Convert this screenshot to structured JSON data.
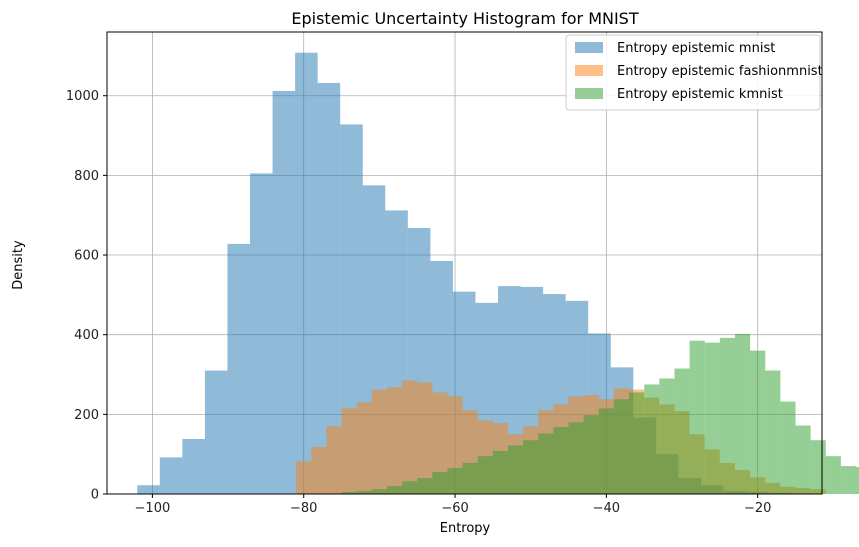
{
  "chart_data": {
    "type": "bar",
    "title": "Epistemic Uncertainty Histogram for MNIST",
    "xlabel": "Entropy",
    "ylabel": "Density",
    "xlim": [
      -106,
      -11.5
    ],
    "ylim": [
      0,
      1160
    ],
    "xticks": [
      -100,
      -80,
      -60,
      -40,
      -20
    ],
    "xtick_labels": [
      "−100",
      "−80",
      "−60",
      "−40",
      "−20"
    ],
    "yticks": [
      0,
      200,
      400,
      600,
      800,
      1000
    ],
    "grid": true,
    "legend_position": "top-right",
    "alpha": 0.5,
    "series": [
      {
        "name": "Entropy epistemic mnist",
        "color": "#1f77b4",
        "bin_start": -102,
        "bin_width": 2.98,
        "values": [
          22,
          92,
          138,
          310,
          628,
          805,
          1012,
          1108,
          1032,
          928,
          775,
          712,
          668,
          585,
          508,
          480,
          522,
          520,
          502,
          485,
          403,
          318,
          192,
          100,
          40,
          22,
          8,
          6,
          3,
          1
        ]
      },
      {
        "name": "Entropy epistemic fashionmnist",
        "color": "#ff7f0e",
        "bin_start": -83,
        "bin_width": 2.0,
        "values": [
          0,
          82,
          118,
          170,
          215,
          230,
          262,
          268,
          285,
          280,
          255,
          245,
          210,
          185,
          178,
          150,
          170,
          210,
          225,
          245,
          248,
          238,
          265,
          262,
          242,
          225,
          208,
          150,
          112,
          78,
          60,
          42,
          28,
          18,
          15,
          12
        ]
      },
      {
        "name": "Entropy epistemic kmnist",
        "color": "#2ca02c",
        "bin_start": -75,
        "bin_width": 2.0,
        "values": [
          5,
          8,
          12,
          20,
          32,
          40,
          55,
          65,
          78,
          95,
          108,
          122,
          135,
          152,
          168,
          180,
          198,
          215,
          238,
          255,
          275,
          290,
          315,
          385,
          380,
          392,
          402,
          360,
          310,
          232,
          172,
          135,
          95,
          70,
          68,
          55,
          45,
          48
        ]
      }
    ]
  }
}
